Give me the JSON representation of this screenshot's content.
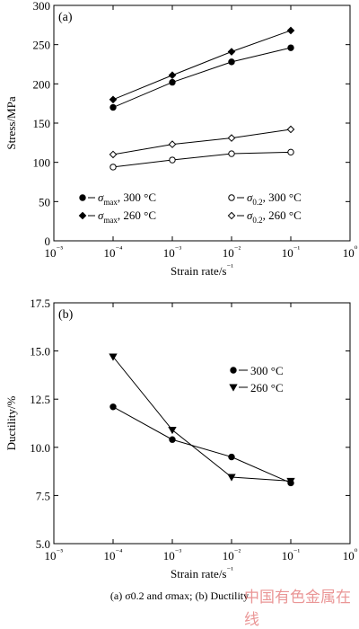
{
  "figure": {
    "caption": "(a) σ0.2 and σmax; (b) Ductility",
    "watermark": "中国有色金属在线"
  },
  "chart_data": [
    {
      "type": "line",
      "panel_label": "(a)",
      "xlabel": "Strain rate/s⁻¹",
      "ylabel": "Stress/MPa",
      "xscale": "log",
      "xlim": [
        1e-05,
        1
      ],
      "ylim": [
        0,
        300
      ],
      "x_ticks": [
        "10⁻⁵",
        "10⁻⁴",
        "10⁻³",
        "10⁻²",
        "10⁻¹",
        "10⁰"
      ],
      "y_ticks": [
        "0",
        "50",
        "100",
        "150",
        "200",
        "250",
        "300"
      ],
      "x": [
        0.0001,
        0.001,
        0.01,
        0.1
      ],
      "legend_position": "bottom",
      "series": [
        {
          "name": "σmax, 300 °C",
          "marker": "filled-circle",
          "values": [
            170,
            202,
            228,
            246
          ]
        },
        {
          "name": "σmax, 260 °C",
          "marker": "filled-diamond",
          "values": [
            180,
            211,
            241,
            268
          ]
        },
        {
          "name": "σ0.2, 300 °C",
          "marker": "open-circle",
          "values": [
            94,
            103,
            111,
            113
          ]
        },
        {
          "name": "σ0.2, 260 °C",
          "marker": "open-diamond",
          "values": [
            110,
            123,
            131,
            142
          ]
        }
      ]
    },
    {
      "type": "line",
      "panel_label": "(b)",
      "xlabel": "Strain rate/s⁻¹",
      "ylabel": "Ductility/%",
      "xscale": "log",
      "xlim": [
        1e-05,
        1
      ],
      "ylim": [
        5.0,
        17.5
      ],
      "x_ticks": [
        "10⁻⁵",
        "10⁻⁴",
        "10⁻³",
        "10⁻²",
        "10⁻¹",
        "10⁰"
      ],
      "y_ticks": [
        "5.0",
        "7.5",
        "10.0",
        "12.5",
        "15.0",
        "17.5"
      ],
      "x": [
        0.0001,
        0.001,
        0.01,
        0.1
      ],
      "legend_position": "top-right",
      "series": [
        {
          "name": "300 °C",
          "marker": "filled-circle",
          "values": [
            12.1,
            10.4,
            9.5,
            8.15
          ]
        },
        {
          "name": "260 °C",
          "marker": "filled-triangle-down",
          "values": [
            14.7,
            10.9,
            8.45,
            8.25
          ]
        }
      ]
    }
  ]
}
